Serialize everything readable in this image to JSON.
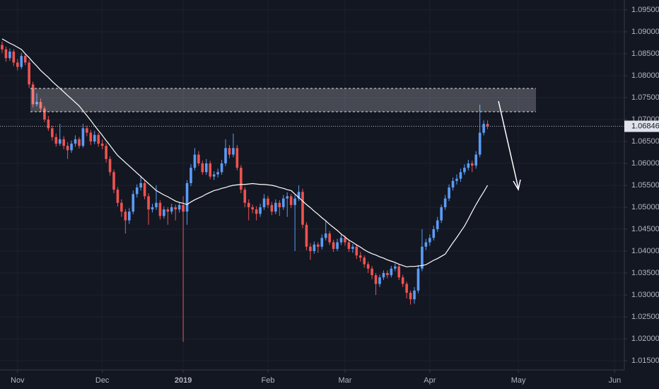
{
  "chart_data": {
    "type": "candlestick",
    "up_color": "#5b9cf6",
    "down_color": "#ef5350",
    "ma_color": "#ffffff",
    "ylim": [
      1.0129,
      1.09726
    ],
    "yticks": [
      {
        "value": 1.015,
        "label": "1.01500"
      },
      {
        "value": 1.02,
        "label": "1.02000"
      },
      {
        "value": 1.025,
        "label": "1.02500"
      },
      {
        "value": 1.03,
        "label": "1.03000"
      },
      {
        "value": 1.035,
        "label": "1.03500"
      },
      {
        "value": 1.04,
        "label": "1.04000"
      },
      {
        "value": 1.045,
        "label": "1.04500"
      },
      {
        "value": 1.05,
        "label": "1.05000"
      },
      {
        "value": 1.055,
        "label": "1.05500"
      },
      {
        "value": 1.06,
        "label": "1.06000"
      },
      {
        "value": 1.065,
        "label": "1.06500"
      },
      {
        "value": 1.07,
        "label": "1.07000"
      },
      {
        "value": 1.075,
        "label": "1.07500"
      },
      {
        "value": 1.08,
        "label": "1.08000"
      },
      {
        "value": 1.085,
        "label": "1.08500"
      },
      {
        "value": 1.09,
        "label": "1.09000"
      },
      {
        "value": 1.095,
        "label": "1.09500"
      }
    ],
    "xlim": [
      -0.55,
      161.5
    ],
    "xticks": [
      {
        "value": 4,
        "label": "Nov"
      },
      {
        "value": 26,
        "label": "Dec"
      },
      {
        "value": 47,
        "label": "2019"
      },
      {
        "value": 69,
        "label": "Feb"
      },
      {
        "value": 89,
        "label": "Mar"
      },
      {
        "value": 111,
        "label": "Apr"
      },
      {
        "value": 134,
        "label": "May"
      },
      {
        "value": 159,
        "label": "Jun"
      }
    ],
    "candles": [
      [
        1.087,
        1.0878,
        1.0852,
        1.086
      ],
      [
        1.086,
        1.0866,
        1.0832,
        1.084
      ],
      [
        1.084,
        1.0862,
        1.0834,
        1.0855
      ],
      [
        1.0855,
        1.086,
        1.0822,
        1.083
      ],
      [
        1.083,
        1.0838,
        1.0812,
        1.082
      ],
      [
        1.082,
        1.0852,
        1.0815,
        1.0845
      ],
      [
        1.0845,
        1.085,
        1.0824,
        1.083
      ],
      [
        1.083,
        1.0836,
        1.0772,
        1.078
      ],
      [
        1.078,
        1.0786,
        1.0728,
        1.0735
      ],
      [
        1.0735,
        1.076,
        1.073,
        1.074
      ],
      [
        1.074,
        1.0748,
        1.0718,
        1.0725
      ],
      [
        1.0725,
        1.073,
        1.0694,
        1.07
      ],
      [
        1.07,
        1.0708,
        1.0674,
        1.068
      ],
      [
        1.068,
        1.0686,
        1.0652,
        1.066
      ],
      [
        1.066,
        1.0668,
        1.0638,
        1.0645
      ],
      [
        1.0645,
        1.069,
        1.064,
        1.0655
      ],
      [
        1.0655,
        1.0662,
        1.0632,
        1.064
      ],
      [
        1.064,
        1.0648,
        1.061,
        1.063
      ],
      [
        1.063,
        1.0652,
        1.0624,
        1.0645
      ],
      [
        1.0645,
        1.0664,
        1.0638,
        1.0655
      ],
      [
        1.0655,
        1.066,
        1.0634,
        1.064
      ],
      [
        1.064,
        1.069,
        1.0636,
        1.068
      ],
      [
        1.068,
        1.0686,
        1.0662,
        1.067
      ],
      [
        1.067,
        1.0676,
        1.0642,
        1.065
      ],
      [
        1.065,
        1.0674,
        1.0644,
        1.0665
      ],
      [
        1.0665,
        1.067,
        1.0638,
        1.0645
      ],
      [
        1.0645,
        1.0654,
        1.0632,
        1.064
      ],
      [
        1.064,
        1.0646,
        1.0602,
        1.061
      ],
      [
        1.061,
        1.0616,
        1.0572,
        1.058
      ],
      [
        1.058,
        1.0586,
        1.0532,
        1.054
      ],
      [
        1.054,
        1.0546,
        1.0502,
        1.051
      ],
      [
        1.051,
        1.0518,
        1.0478,
        1.049
      ],
      [
        1.049,
        1.0496,
        1.044,
        1.047
      ],
      [
        1.047,
        1.0498,
        1.0462,
        1.049
      ],
      [
        1.049,
        1.0538,
        1.0484,
        1.053
      ],
      [
        1.053,
        1.0552,
        1.0522,
        1.0545
      ],
      [
        1.0545,
        1.0572,
        1.0538,
        1.0555
      ],
      [
        1.0555,
        1.0562,
        1.0518,
        1.0525
      ],
      [
        1.0525,
        1.0532,
        1.046,
        1.0495
      ],
      [
        1.0495,
        1.0508,
        1.0488,
        1.05
      ],
      [
        1.05,
        1.055,
        1.0494,
        1.051
      ],
      [
        1.051,
        1.0516,
        1.0472,
        1.048
      ],
      [
        1.048,
        1.0502,
        1.0474,
        1.0495
      ],
      [
        1.0495,
        1.05,
        1.046,
        1.049
      ],
      [
        1.049,
        1.0508,
        1.0484,
        1.05
      ],
      [
        1.05,
        1.0506,
        1.047,
        1.0495
      ],
      [
        1.0495,
        1.0512,
        1.0488,
        1.0505
      ],
      [
        1.0505,
        1.0525,
        1.0193,
        1.049
      ],
      [
        1.049,
        1.0562,
        1.046,
        1.0555
      ],
      [
        1.0555,
        1.0598,
        1.0548,
        1.059
      ],
      [
        1.059,
        1.0635,
        1.0584,
        1.062
      ],
      [
        1.062,
        1.0628,
        1.0594,
        1.06
      ],
      [
        1.06,
        1.0606,
        1.0574,
        1.058
      ],
      [
        1.058,
        1.061,
        1.0574,
        1.06
      ],
      [
        1.06,
        1.0606,
        1.0564,
        1.057
      ],
      [
        1.057,
        1.0582,
        1.0562,
        1.0575
      ],
      [
        1.0575,
        1.0588,
        1.0568,
        1.058
      ],
      [
        1.058,
        1.0608,
        1.0574,
        1.06
      ],
      [
        1.06,
        1.0655,
        1.0594,
        1.0635
      ],
      [
        1.0635,
        1.0642,
        1.0612,
        1.062
      ],
      [
        1.062,
        1.0668,
        1.0614,
        1.0635
      ],
      [
        1.0635,
        1.0642,
        1.0584,
        1.059
      ],
      [
        1.059,
        1.0596,
        1.0532,
        1.054
      ],
      [
        1.054,
        1.0546,
        1.05,
        1.051
      ],
      [
        1.051,
        1.0518,
        1.047,
        1.05
      ],
      [
        1.05,
        1.0506,
        1.0486,
        1.0495
      ],
      [
        1.0495,
        1.0502,
        1.047,
        1.0485
      ],
      [
        1.0485,
        1.0508,
        1.0478,
        1.05
      ],
      [
        1.05,
        1.053,
        1.0494,
        1.052
      ],
      [
        1.052,
        1.0526,
        1.0498,
        1.0505
      ],
      [
        1.0505,
        1.0512,
        1.0482,
        1.049
      ],
      [
        1.049,
        1.0518,
        1.0484,
        1.051
      ],
      [
        1.051,
        1.0516,
        1.048,
        1.05
      ],
      [
        1.05,
        1.0528,
        1.0494,
        1.052
      ],
      [
        1.052,
        1.0534,
        1.0478,
        1.0525
      ],
      [
        1.0525,
        1.053,
        1.0498,
        1.0505
      ],
      [
        1.0505,
        1.0528,
        1.04,
        1.052
      ],
      [
        1.052,
        1.055,
        1.0514,
        1.0535
      ],
      [
        1.0535,
        1.0542,
        1.0452,
        1.046
      ],
      [
        1.046,
        1.0466,
        1.0402,
        1.041
      ],
      [
        1.041,
        1.0418,
        1.038,
        1.04
      ],
      [
        1.04,
        1.0422,
        1.0394,
        1.0415
      ],
      [
        1.0415,
        1.042,
        1.0396,
        1.041
      ],
      [
        1.041,
        1.0438,
        1.0404,
        1.043
      ],
      [
        1.043,
        1.047,
        1.0424,
        1.044
      ],
      [
        1.044,
        1.0446,
        1.0414,
        1.042
      ],
      [
        1.042,
        1.0426,
        1.0398,
        1.0405
      ],
      [
        1.0405,
        1.0428,
        1.04,
        1.042
      ],
      [
        1.042,
        1.0438,
        1.0414,
        1.043
      ],
      [
        1.043,
        1.0436,
        1.0412,
        1.042
      ],
      [
        1.042,
        1.0426,
        1.0398,
        1.0405
      ],
      [
        1.0405,
        1.0416,
        1.0396,
        1.041
      ],
      [
        1.041,
        1.0416,
        1.0382,
        1.039
      ],
      [
        1.039,
        1.0398,
        1.0376,
        1.0385
      ],
      [
        1.0385,
        1.039,
        1.0362,
        1.037
      ],
      [
        1.037,
        1.0376,
        1.035,
        1.036
      ],
      [
        1.036,
        1.0366,
        1.0336,
        1.0345
      ],
      [
        1.0345,
        1.035,
        1.03,
        1.0325
      ],
      [
        1.0325,
        1.0346,
        1.0318,
        1.034
      ],
      [
        1.034,
        1.0356,
        1.0334,
        1.035
      ],
      [
        1.035,
        1.0356,
        1.0338,
        1.0345
      ],
      [
        1.0345,
        1.0366,
        1.034,
        1.036
      ],
      [
        1.036,
        1.0372,
        1.0354,
        1.0365
      ],
      [
        1.0365,
        1.037,
        1.0334,
        1.034
      ],
      [
        1.034,
        1.0346,
        1.0318,
        1.0325
      ],
      [
        1.0325,
        1.033,
        1.0292,
        1.0305
      ],
      [
        1.0305,
        1.031,
        1.0278,
        1.029
      ],
      [
        1.029,
        1.0318,
        1.028,
        1.031
      ],
      [
        1.031,
        1.0368,
        1.0304,
        1.036
      ],
      [
        1.036,
        1.045,
        1.0354,
        1.041
      ],
      [
        1.041,
        1.0428,
        1.0402,
        1.042
      ],
      [
        1.042,
        1.0438,
        1.0412,
        1.043
      ],
      [
        1.043,
        1.0458,
        1.0424,
        1.045
      ],
      [
        1.045,
        1.0478,
        1.0444,
        1.047
      ],
      [
        1.047,
        1.0506,
        1.0464,
        1.05
      ],
      [
        1.05,
        1.0528,
        1.0494,
        1.052
      ],
      [
        1.052,
        1.0552,
        1.0514,
        1.0545
      ],
      [
        1.0545,
        1.0568,
        1.0538,
        1.056
      ],
      [
        1.056,
        1.0575,
        1.0552,
        1.0565
      ],
      [
        1.0565,
        1.0588,
        1.0558,
        1.058
      ],
      [
        1.058,
        1.0598,
        1.0574,
        1.059
      ],
      [
        1.059,
        1.0608,
        1.0584,
        1.06
      ],
      [
        1.06,
        1.0606,
        1.058,
        1.0595
      ],
      [
        1.0595,
        1.0628,
        1.0588,
        1.062
      ],
      [
        1.062,
        1.0734,
        1.0614,
        1.067
      ],
      [
        1.067,
        1.0698,
        1.0664,
        1.069
      ],
      [
        1.069,
        1.0698,
        1.0678,
        1.06846
      ]
    ],
    "ma": [
      1.0884,
      1.0879,
      1.0874,
      1.087,
      1.0865,
      1.086,
      1.085,
      1.0841,
      1.0831,
      1.0822,
      1.0812,
      1.0804,
      1.0796,
      1.0787,
      1.0779,
      1.0771,
      1.0763,
      1.0755,
      1.0747,
      1.0739,
      1.0731,
      1.072,
      1.0709,
      1.0698,
      1.0686,
      1.0675,
      1.0664,
      1.0652,
      1.0641,
      1.0629,
      1.0618,
      1.061,
      1.0602,
      1.0594,
      1.0586,
      1.0578,
      1.057,
      1.0562,
      1.0554,
      1.0546,
      1.0538,
      1.0533,
      1.0528,
      1.0524,
      1.0519,
      1.0514,
      1.0511,
      1.0509,
      1.0506,
      1.0512,
      1.0517,
      1.0521,
      1.0525,
      1.053,
      1.0534,
      1.0538,
      1.054,
      1.0543,
      1.0545,
      1.0548,
      1.055,
      1.0551,
      1.0552,
      1.0552,
      1.0553,
      1.0554,
      1.0553,
      1.0552,
      1.0552,
      1.0551,
      1.055,
      1.0548,
      1.0545,
      1.0543,
      1.054,
      1.0538,
      1.053,
      1.0522,
      1.0514,
      1.0506,
      1.0499,
      1.0491,
      1.0484,
      1.0476,
      1.0469,
      1.0461,
      1.0454,
      1.0447,
      1.0439,
      1.0432,
      1.0425,
      1.042,
      1.0414,
      1.0409,
      1.0403,
      1.0398,
      1.0394,
      1.0391,
      1.0387,
      1.0384,
      1.038,
      1.0377,
      1.0374,
      1.037,
      1.0367,
      1.0364,
      1.0365,
      1.0365,
      1.0366,
      1.0367,
      1.0369,
      1.0374,
      1.0379,
      1.0383,
      1.0388,
      1.0393,
      1.0406,
      1.0419,
      1.0431,
      1.0444,
      1.0457,
      1.0473,
      1.049,
      1.0506,
      1.0521,
      1.0535,
      1.055
    ]
  }
}
